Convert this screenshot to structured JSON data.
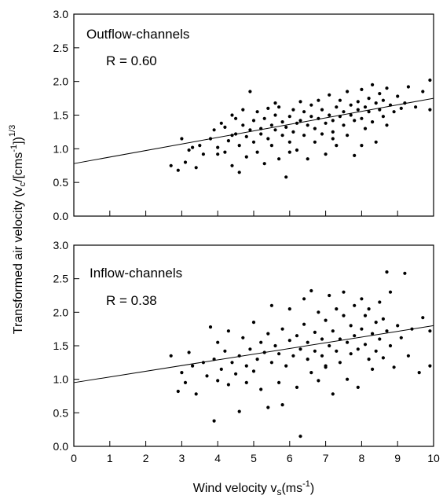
{
  "chart_data": [
    {
      "type": "scatter",
      "panel": "top",
      "title": "Outflow-channels",
      "annotation": "R = 0.60",
      "xlim": [
        0,
        10
      ],
      "ylim": [
        0.0,
        3.0
      ],
      "xticks": [
        0,
        1,
        2,
        3,
        4,
        5,
        6,
        7,
        8,
        9,
        10
      ],
      "yticks": [
        "0.0",
        "0.5",
        "1.0",
        "1.5",
        "2.0",
        "2.5",
        "3.0"
      ],
      "show_xtick_labels": false,
      "grid": false,
      "point_color": "#000000",
      "regression_line": {
        "x": [
          0,
          10
        ],
        "y": [
          0.78,
          1.75
        ]
      },
      "points": [
        [
          2.7,
          0.75
        ],
        [
          2.9,
          0.68
        ],
        [
          3.0,
          1.15
        ],
        [
          3.1,
          0.8
        ],
        [
          3.2,
          0.98
        ],
        [
          3.3,
          1.02
        ],
        [
          3.4,
          0.72
        ],
        [
          3.5,
          1.05
        ],
        [
          3.6,
          0.92
        ],
        [
          3.8,
          1.15
        ],
        [
          3.9,
          1.28
        ],
        [
          4.0,
          1.02
        ],
        [
          4.0,
          0.92
        ],
        [
          4.1,
          1.38
        ],
        [
          4.2,
          1.32
        ],
        [
          4.2,
          0.95
        ],
        [
          4.3,
          1.12
        ],
        [
          4.4,
          1.2
        ],
        [
          4.4,
          0.75
        ],
        [
          4.5,
          1.45
        ],
        [
          4.5,
          1.22
        ],
        [
          4.6,
          1.05
        ],
        [
          4.6,
          0.65
        ],
        [
          4.7,
          1.35
        ],
        [
          4.7,
          1.58
        ],
        [
          4.8,
          1.18
        ],
        [
          4.8,
          0.88
        ],
        [
          4.9,
          1.85
        ],
        [
          4.9,
          1.28
        ],
        [
          5.0,
          1.42
        ],
        [
          5.0,
          1.1
        ],
        [
          5.1,
          0.95
        ],
        [
          5.1,
          1.55
        ],
        [
          5.2,
          1.3
        ],
        [
          5.2,
          1.22
        ],
        [
          5.3,
          0.78
        ],
        [
          5.3,
          1.45
        ],
        [
          5.4,
          1.6
        ],
        [
          5.4,
          1.15
        ],
        [
          5.5,
          1.35
        ],
        [
          5.5,
          1.05
        ],
        [
          5.6,
          1.28
        ],
        [
          5.6,
          1.5
        ],
        [
          5.7,
          0.85
        ],
        [
          5.7,
          1.62
        ],
        [
          5.8,
          1.4
        ],
        [
          5.8,
          1.2
        ],
        [
          5.9,
          0.58
        ],
        [
          5.9,
          1.32
        ],
        [
          6.0,
          1.48
        ],
        [
          6.0,
          1.1
        ],
        [
          6.1,
          1.25
        ],
        [
          6.1,
          1.58
        ],
        [
          6.2,
          1.38
        ],
        [
          6.2,
          0.98
        ],
        [
          6.3,
          1.7
        ],
        [
          6.3,
          1.42
        ],
        [
          6.4,
          1.2
        ],
        [
          6.4,
          1.55
        ],
        [
          6.5,
          1.35
        ],
        [
          6.5,
          0.85
        ],
        [
          6.6,
          1.48
        ],
        [
          6.6,
          1.65
        ],
        [
          6.7,
          1.3
        ],
        [
          6.7,
          1.1
        ],
        [
          6.8,
          1.72
        ],
        [
          6.8,
          1.45
        ],
        [
          6.9,
          1.22
        ],
        [
          6.9,
          1.58
        ],
        [
          7.0,
          1.38
        ],
        [
          7.0,
          0.92
        ],
        [
          7.1,
          1.5
        ],
        [
          7.1,
          1.8
        ],
        [
          7.2,
          1.42
        ],
        [
          7.2,
          1.25
        ],
        [
          7.3,
          1.62
        ],
        [
          7.3,
          1.05
        ],
        [
          7.4,
          1.48
        ],
        [
          7.4,
          1.72
        ],
        [
          7.5,
          1.35
        ],
        [
          7.5,
          1.55
        ],
        [
          7.6,
          1.85
        ],
        [
          7.6,
          1.2
        ],
        [
          7.7,
          1.5
        ],
        [
          7.7,
          1.65
        ],
        [
          7.8,
          1.42
        ],
        [
          7.8,
          0.9
        ],
        [
          7.9,
          1.7
        ],
        [
          7.9,
          1.58
        ],
        [
          8.0,
          1.88
        ],
        [
          8.0,
          1.45
        ],
        [
          8.1,
          1.62
        ],
        [
          8.1,
          1.3
        ],
        [
          8.2,
          1.75
        ],
        [
          8.2,
          1.55
        ],
        [
          8.3,
          1.95
        ],
        [
          8.3,
          1.4
        ],
        [
          8.4,
          1.68
        ],
        [
          8.4,
          1.1
        ],
        [
          8.5,
          1.82
        ],
        [
          8.5,
          1.58
        ],
        [
          8.6,
          1.48
        ],
        [
          8.6,
          1.72
        ],
        [
          8.7,
          1.9
        ],
        [
          8.7,
          1.35
        ],
        [
          8.8,
          1.65
        ],
        [
          8.9,
          1.55
        ],
        [
          9.0,
          1.78
        ],
        [
          9.1,
          1.6
        ],
        [
          9.2,
          1.68
        ],
        [
          9.3,
          1.92
        ],
        [
          9.5,
          1.62
        ],
        [
          9.7,
          1.85
        ],
        [
          9.9,
          2.02
        ],
        [
          9.9,
          1.58
        ],
        [
          8.0,
          1.05
        ],
        [
          7.2,
          1.15
        ],
        [
          6.0,
          0.95
        ],
        [
          4.4,
          1.5
        ],
        [
          5.6,
          1.68
        ]
      ]
    },
    {
      "type": "scatter",
      "panel": "bottom",
      "title": "Inflow-channels",
      "annotation": "R = 0.38",
      "xlim": [
        0,
        10
      ],
      "ylim": [
        0.0,
        3.0
      ],
      "xticks": [
        0,
        1,
        2,
        3,
        4,
        5,
        6,
        7,
        8,
        9,
        10
      ],
      "yticks": [
        "0.0",
        "0.5",
        "1.0",
        "1.5",
        "2.0",
        "2.5",
        "3.0"
      ],
      "show_xtick_labels": true,
      "grid": false,
      "point_color": "#000000",
      "regression_line": {
        "x": [
          0,
          10
        ],
        "y": [
          0.95,
          1.8
        ]
      },
      "points": [
        [
          2.7,
          1.35
        ],
        [
          2.9,
          0.82
        ],
        [
          3.0,
          1.1
        ],
        [
          3.1,
          0.95
        ],
        [
          3.2,
          1.4
        ],
        [
          3.3,
          1.2
        ],
        [
          3.4,
          0.78
        ],
        [
          3.6,
          1.25
        ],
        [
          3.7,
          1.05
        ],
        [
          3.8,
          1.78
        ],
        [
          3.9,
          0.38
        ],
        [
          3.9,
          1.3
        ],
        [
          4.0,
          0.98
        ],
        [
          4.0,
          1.55
        ],
        [
          4.1,
          1.15
        ],
        [
          4.2,
          1.42
        ],
        [
          4.3,
          0.92
        ],
        [
          4.3,
          1.72
        ],
        [
          4.4,
          1.25
        ],
        [
          4.5,
          1.08
        ],
        [
          4.6,
          1.35
        ],
        [
          4.6,
          0.52
        ],
        [
          4.7,
          1.62
        ],
        [
          4.8,
          1.2
        ],
        [
          4.8,
          0.95
        ],
        [
          4.9,
          1.45
        ],
        [
          5.0,
          1.12
        ],
        [
          5.0,
          1.85
        ],
        [
          5.1,
          1.3
        ],
        [
          5.2,
          0.85
        ],
        [
          5.2,
          1.55
        ],
        [
          5.3,
          1.4
        ],
        [
          5.4,
          0.58
        ],
        [
          5.4,
          1.68
        ],
        [
          5.5,
          1.25
        ],
        [
          5.5,
          2.1
        ],
        [
          5.6,
          1.5
        ],
        [
          5.7,
          0.95
        ],
        [
          5.7,
          1.38
        ],
        [
          5.8,
          1.75
        ],
        [
          5.9,
          1.2
        ],
        [
          6.0,
          1.58
        ],
        [
          6.0,
          2.05
        ],
        [
          6.1,
          1.35
        ],
        [
          6.2,
          0.88
        ],
        [
          6.2,
          1.65
        ],
        [
          6.3,
          1.45
        ],
        [
          6.3,
          0.15
        ],
        [
          6.4,
          1.82
        ],
        [
          6.4,
          2.2
        ],
        [
          6.5,
          1.3
        ],
        [
          6.5,
          1.55
        ],
        [
          6.6,
          2.32
        ],
        [
          6.6,
          1.1
        ],
        [
          6.7,
          1.7
        ],
        [
          6.7,
          1.42
        ],
        [
          6.8,
          2.0
        ],
        [
          6.8,
          0.98
        ],
        [
          6.9,
          1.6
        ],
        [
          6.9,
          1.35
        ],
        [
          7.0,
          1.88
        ],
        [
          7.0,
          1.18
        ],
        [
          7.1,
          2.25
        ],
        [
          7.1,
          1.5
        ],
        [
          7.2,
          1.72
        ],
        [
          7.2,
          0.78
        ],
        [
          7.3,
          1.42
        ],
        [
          7.3,
          2.05
        ],
        [
          7.4,
          1.6
        ],
        [
          7.4,
          1.25
        ],
        [
          7.5,
          1.95
        ],
        [
          7.5,
          2.3
        ],
        [
          7.6,
          1.55
        ],
        [
          7.6,
          1.0
        ],
        [
          7.7,
          1.8
        ],
        [
          7.7,
          1.38
        ],
        [
          7.8,
          2.1
        ],
        [
          7.8,
          1.65
        ],
        [
          7.9,
          1.45
        ],
        [
          7.9,
          0.88
        ],
        [
          8.0,
          1.75
        ],
        [
          8.0,
          2.2
        ],
        [
          8.1,
          1.52
        ],
        [
          8.1,
          1.95
        ],
        [
          8.2,
          1.3
        ],
        [
          8.2,
          2.05
        ],
        [
          8.3,
          1.68
        ],
        [
          8.3,
          1.15
        ],
        [
          8.4,
          1.85
        ],
        [
          8.4,
          1.42
        ],
        [
          8.5,
          2.15
        ],
        [
          8.5,
          1.6
        ],
        [
          8.6,
          1.32
        ],
        [
          8.6,
          1.9
        ],
        [
          8.7,
          2.6
        ],
        [
          8.7,
          1.72
        ],
        [
          8.8,
          1.5
        ],
        [
          8.8,
          2.3
        ],
        [
          8.9,
          1.18
        ],
        [
          9.0,
          1.8
        ],
        [
          9.1,
          1.62
        ],
        [
          9.2,
          2.58
        ],
        [
          9.3,
          1.35
        ],
        [
          9.4,
          1.75
        ],
        [
          9.6,
          1.1
        ],
        [
          9.7,
          1.92
        ],
        [
          9.9,
          1.2
        ],
        [
          9.9,
          1.72
        ],
        [
          5.8,
          0.62
        ],
        [
          7.0,
          1.2
        ]
      ]
    }
  ],
  "ylabel": "Transformed air velocity (vₙ/[cms⁻¹])¹ᐟ³",
  "ylabel_display": "Transformed air velocity (vc/[cms-1])1/3",
  "xlabel": "Wind velocity vs(ms-1)"
}
